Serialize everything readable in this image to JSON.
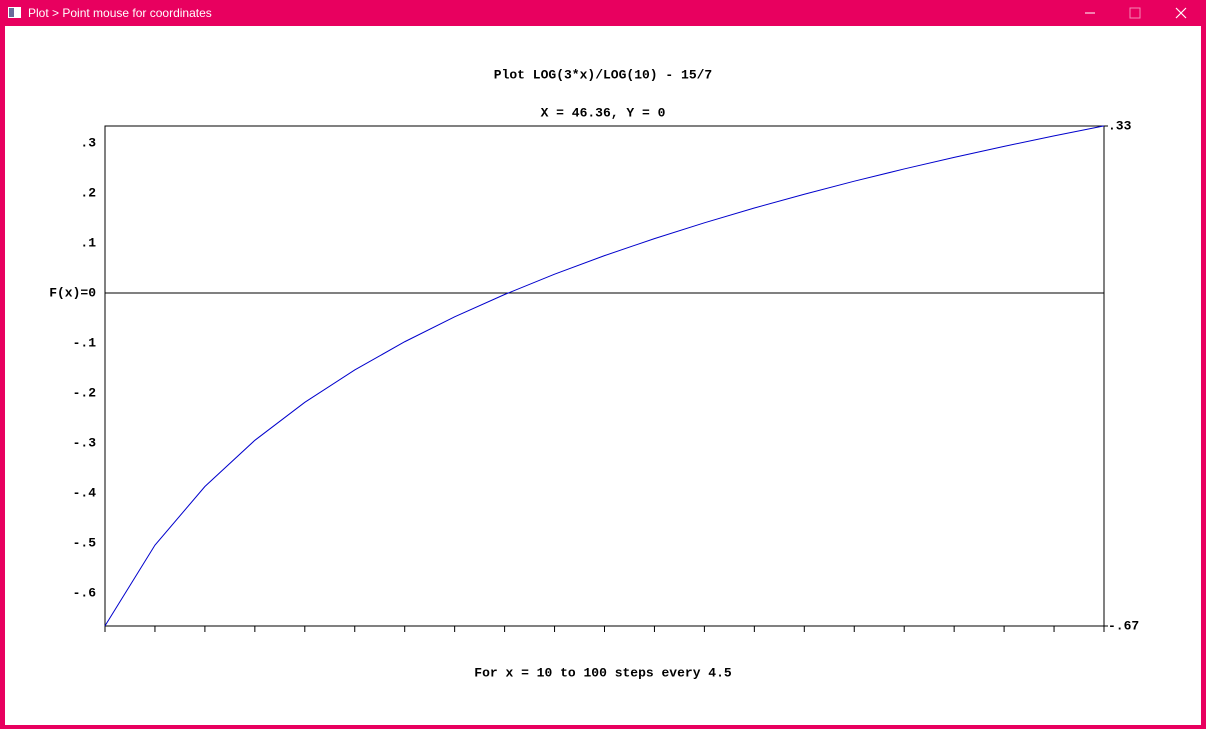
{
  "window": {
    "title": "Plot > Point mouse for coordinates"
  },
  "chart_data": {
    "type": "line",
    "title": "Plot LOG(3*x)/LOG(10) - 15/7",
    "subtitle": "X = 46.36, Y = 0",
    "x_label": "For x = 10 to 100 steps every 4.5",
    "x": [
      10,
      14.5,
      19,
      23.5,
      28,
      32.5,
      37,
      41.5,
      46,
      50.5,
      55,
      59.5,
      64,
      68.5,
      73,
      77.5,
      82,
      86.5,
      91,
      95.5,
      100
    ],
    "values": [
      -0.6657,
      -0.5043,
      -0.387,
      -0.2946,
      -0.2186,
      -0.1539,
      -0.0975,
      -0.0477,
      -0.003,
      0.0376,
      0.0747,
      0.1088,
      0.1404,
      0.17,
      0.1975,
      0.2236,
      0.2481,
      0.2713,
      0.2933,
      0.3143,
      0.3342
    ],
    "color": "#0000cc",
    "xlim": [
      10,
      100
    ],
    "xticks": [
      10,
      14.5,
      19,
      23.5,
      28,
      32.5,
      37,
      41.5,
      46,
      50.5,
      55,
      59.5,
      64,
      68.5,
      73,
      77.5,
      82,
      86.5,
      91,
      95.5,
      100
    ],
    "ylim": [
      -0.666,
      0.334
    ],
    "yticks": [
      {
        "value": 0.3,
        "label": ".3"
      },
      {
        "value": 0.2,
        "label": ".2"
      },
      {
        "value": 0.1,
        "label": ".1"
      },
      {
        "value": 0,
        "label": "F(x)=0"
      },
      {
        "value": -0.1,
        "label": "-.1"
      },
      {
        "value": -0.2,
        "label": "-.2"
      },
      {
        "value": -0.3,
        "label": "-.3"
      },
      {
        "value": -0.4,
        "label": "-.4"
      },
      {
        "value": -0.5,
        "label": "-.5"
      },
      {
        "value": -0.6,
        "label": "-.6"
      }
    ],
    "limit_labels": [
      {
        "value": 0.334,
        "label": ".33"
      },
      {
        "value": -0.666,
        "label": "-.67"
      }
    ]
  }
}
